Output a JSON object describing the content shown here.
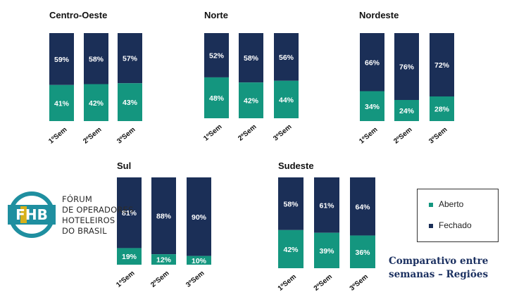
{
  "colors": {
    "aberto": "#14967f",
    "fechado": "#1b2f57",
    "text": "#111111"
  },
  "categories": [
    "1ºSem",
    "2ºSem",
    "3ºSem"
  ],
  "chart_data": [
    {
      "type": "bar",
      "title": "Centro-Oeste",
      "categories": [
        "1ºSem",
        "2ºSem",
        "3ºSem"
      ],
      "series": [
        {
          "name": "Aberto",
          "values": [
            41,
            42,
            43
          ]
        },
        {
          "name": "Fechado",
          "values": [
            59,
            58,
            57
          ]
        }
      ]
    },
    {
      "type": "bar",
      "title": "Norte",
      "categories": [
        "1ºSem",
        "2ºSem",
        "3ºSem"
      ],
      "series": [
        {
          "name": "Aberto",
          "values": [
            48,
            42,
            44
          ]
        },
        {
          "name": "Fechado",
          "values": [
            52,
            58,
            56
          ]
        }
      ]
    },
    {
      "type": "bar",
      "title": "Nordeste",
      "categories": [
        "1ºSem",
        "2ºSem",
        "3ºSem"
      ],
      "series": [
        {
          "name": "Aberto",
          "values": [
            34,
            24,
            28
          ]
        },
        {
          "name": "Fechado",
          "values": [
            66,
            76,
            72
          ]
        }
      ]
    },
    {
      "type": "bar",
      "title": "Sul",
      "categories": [
        "1ºSem",
        "2ºSem",
        "3ºSem"
      ],
      "series": [
        {
          "name": "Aberto",
          "values": [
            19,
            12,
            10
          ]
        },
        {
          "name": "Fechado",
          "values": [
            81,
            88,
            90
          ]
        }
      ]
    },
    {
      "type": "bar",
      "title": "Sudeste",
      "categories": [
        "1ºSem",
        "2ºSem",
        "3ºSem"
      ],
      "series": [
        {
          "name": "Aberto",
          "values": [
            42,
            39,
            36
          ]
        },
        {
          "name": "Fechado",
          "values": [
            58,
            61,
            64
          ]
        }
      ]
    }
  ],
  "legend": {
    "aberto": "Aberto",
    "fechado": "Fechado"
  },
  "logo": {
    "mark": "FHB",
    "lines": [
      "FÓRUM",
      "DE OPERADORES",
      "HOTELEIROS",
      "DO BRASIL"
    ]
  },
  "caption": {
    "line1": "Comparativo entre",
    "line2": "semanas – Regiões"
  }
}
